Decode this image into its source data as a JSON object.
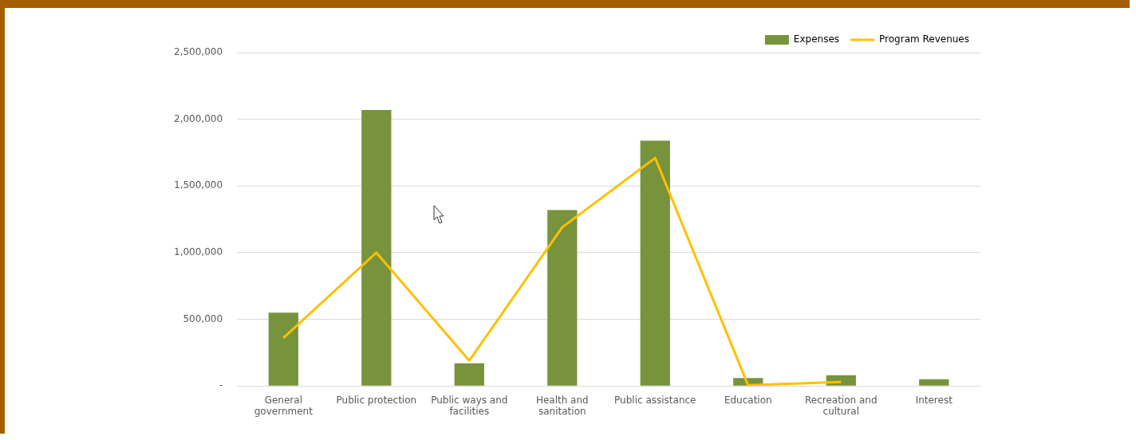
{
  "chart_data": {
    "type": "bar",
    "categories": [
      "General government",
      "Public protection",
      "Public ways and facilities",
      "Health and sanitation",
      "Public assistance",
      "Education",
      "Recreation and cultural",
      "Interest"
    ],
    "series": [
      {
        "name": "Expenses",
        "color": "#77933c",
        "values": [
          550000,
          2070000,
          170000,
          1320000,
          1840000,
          60000,
          80000,
          50000
        ]
      },
      {
        "name": "Program Revenues",
        "type": "line",
        "color": "#ffc000",
        "values": [
          360000,
          1000000,
          190000,
          1190000,
          1710000,
          5000,
          30000,
          null
        ]
      }
    ],
    "ylim": [
      0,
      2500000
    ],
    "yticks": [
      {
        "value": 0,
        "label": "-"
      },
      {
        "value": 500000,
        "label": "500,000"
      },
      {
        "value": 1000000,
        "label": "1,000,000"
      },
      {
        "value": 1500000,
        "label": "1,500,000"
      },
      {
        "value": 2000000,
        "label": "2,000,000"
      },
      {
        "value": 2500000,
        "label": "2,500,000"
      }
    ],
    "grid": "y",
    "legend": "top right",
    "marker": "none"
  }
}
